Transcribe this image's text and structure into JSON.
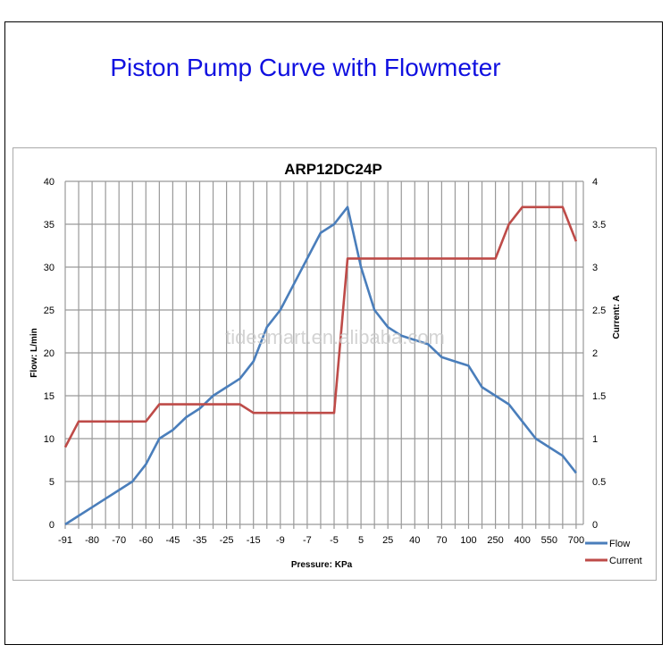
{
  "page_title": "Piston Pump Curve with Flowmeter",
  "watermark": "tidesmart.en.alibaba.com",
  "chart_data": {
    "type": "line",
    "title": "ARP12DC24P",
    "xlabel": "Pressure: KPa",
    "ylabel": "Flow: L/min",
    "y2label": "Current: A",
    "ylim": [
      0,
      40
    ],
    "y2lim": [
      0,
      4
    ],
    "yticks": [
      0,
      5,
      10,
      15,
      20,
      25,
      30,
      35,
      40
    ],
    "y2ticks": [
      "0",
      "0.5",
      "1",
      "1.5",
      "2",
      "2.5",
      "3",
      "3.5",
      "4"
    ],
    "grid": true,
    "legend_position": "bottom-right",
    "categories": [
      "-91",
      "",
      "-80",
      "",
      "-70",
      "",
      "-60",
      "",
      "-45",
      "",
      "-35",
      "",
      "-25",
      "",
      "-15",
      "",
      "-9",
      "",
      "-7",
      "",
      "-5",
      "",
      "5",
      "",
      "25",
      "",
      "40",
      "",
      "70",
      "",
      "100",
      "",
      "250",
      "",
      "400",
      "",
      "550",
      "",
      "700"
    ],
    "series": [
      {
        "name": "Flow",
        "axis": "left",
        "color": "#4a7ebb",
        "values": [
          0,
          1,
          2,
          3,
          4,
          5,
          7,
          10,
          11,
          12.5,
          13.5,
          15,
          16,
          17,
          19,
          23,
          25,
          28,
          31,
          34,
          35,
          37,
          30,
          25,
          23,
          22,
          21.5,
          21,
          19.5,
          19,
          18.5,
          16,
          15,
          14,
          12,
          10,
          9,
          8,
          6
        ]
      },
      {
        "name": "Current",
        "axis": "right",
        "color": "#be4b48",
        "values": [
          0.9,
          1.2,
          1.2,
          1.2,
          1.2,
          1.2,
          1.2,
          1.4,
          1.4,
          1.4,
          1.4,
          1.4,
          1.4,
          1.4,
          1.3,
          1.3,
          1.3,
          1.3,
          1.3,
          1.3,
          1.3,
          3.1,
          3.1,
          3.1,
          3.1,
          3.1,
          3.1,
          3.1,
          3.1,
          3.1,
          3.1,
          3.1,
          3.1,
          3.5,
          3.7,
          3.7,
          3.7,
          3.7,
          3.3
        ]
      }
    ]
  }
}
